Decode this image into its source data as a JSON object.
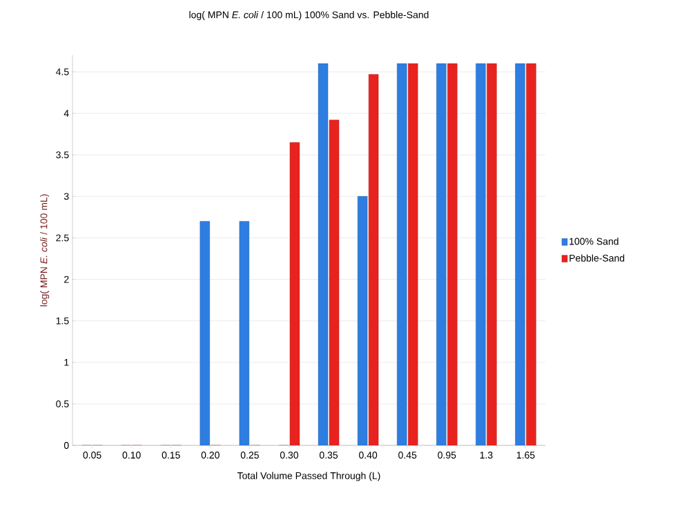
{
  "chart_data": {
    "type": "bar",
    "title": "log( MPN *E. coli* / 100 mL) 100% Sand vs. Pebble-Sand",
    "xlabel": "Total Volume Passed Through (L)",
    "ylabel": "log( MPN *E. coli* / 100 mL)",
    "categories": [
      "0.05",
      "0.10",
      "0.15",
      "0.20",
      "0.25",
      "0.30",
      "0.35",
      "0.40",
      "0.45",
      "0.95",
      "1.3",
      "1.65"
    ],
    "series": [
      {
        "name": "100% Sand",
        "color": "#2e7de0",
        "values": [
          0,
          0,
          0,
          2.7,
          2.7,
          0,
          4.6,
          3.0,
          4.6,
          4.6,
          4.6,
          4.6
        ]
      },
      {
        "name": "Pebble-Sand",
        "color": "#e8231f",
        "values": [
          0,
          0,
          0,
          0,
          0,
          3.65,
          3.92,
          4.47,
          4.6,
          4.6,
          4.6,
          4.6
        ]
      }
    ],
    "ylim": [
      0,
      4.7
    ],
    "yticks": [
      0,
      0.5,
      1,
      1.5,
      2,
      2.5,
      3,
      3.5,
      4,
      4.5
    ],
    "grid": "y",
    "legend": "right"
  }
}
